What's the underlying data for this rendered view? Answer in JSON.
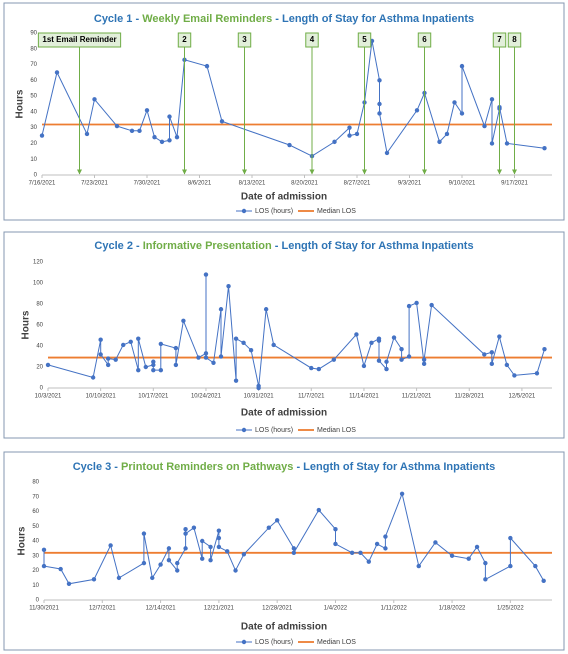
{
  "chart_data": [
    {
      "type": "line",
      "title_parts": [
        "Cycle 1 - ",
        "Weekly Email Reminders",
        " - Length of Stay for Asthma Inpatients"
      ],
      "x_label": "Date of admission",
      "y_label": "Hours",
      "xlim": [
        "7/16/2021",
        "9/22/2021"
      ],
      "xticks": [
        "7/16/2021",
        "7/23/2021",
        "7/30/2021",
        "8/6/2021",
        "8/13/2021",
        "8/20/2021",
        "8/27/2021",
        "9/3/2021",
        "9/10/2021",
        "9/17/2021"
      ],
      "ylim": [
        0,
        90
      ],
      "yticks": [
        0,
        10,
        20,
        30,
        40,
        50,
        60,
        70,
        80,
        90
      ],
      "x": [
        "7/16/2021",
        "7/18/2021",
        "7/22/2021",
        "7/23/2021",
        "7/26/2021",
        "7/28/2021",
        "7/29/2021",
        "7/30/2021",
        "7/31/2021",
        "8/1/2021",
        "8/2/2021",
        "8/2/2021",
        "8/3/2021",
        "8/4/2021",
        "8/7/2021",
        "8/9/2021",
        "8/18/2021",
        "8/21/2021",
        "8/24/2021",
        "8/26/2021",
        "8/26/2021",
        "8/27/2021",
        "8/28/2021",
        "8/29/2021",
        "8/30/2021",
        "8/30/2021",
        "8/30/2021",
        "8/31/2021",
        "9/4/2021",
        "9/5/2021",
        "9/7/2021",
        "9/8/2021",
        "9/9/2021",
        "9/10/2021",
        "9/10/2021",
        "9/13/2021",
        "9/14/2021",
        "9/14/2021",
        "9/15/2021",
        "9/15/2021",
        "9/16/2021",
        "9/21/2021"
      ],
      "series": [
        {
          "name": "LOS (hours)",
          "color": "#4472c4",
          "values": [
            25,
            65,
            26,
            48,
            31,
            28,
            28,
            41,
            24,
            21,
            22,
            37,
            24,
            73,
            69,
            34,
            19,
            12,
            21,
            30,
            25,
            26,
            46,
            85,
            60,
            45,
            39,
            14,
            41,
            52,
            21,
            26,
            46,
            39,
            69,
            31,
            48,
            20,
            42,
            43,
            20,
            17
          ]
        },
        {
          "name": "Median LOS",
          "color": "#ed7d31",
          "value": 32
        }
      ],
      "annotations": [
        {
          "label": "1st Email Reminder",
          "x": "7/21/2021"
        },
        {
          "label": "2",
          "x": "8/4/2021"
        },
        {
          "label": "3",
          "x": "8/12/2021"
        },
        {
          "label": "4",
          "x": "8/21/2021"
        },
        {
          "label": "5",
          "x": "8/28/2021"
        },
        {
          "label": "6",
          "x": "9/5/2021"
        },
        {
          "label": "7",
          "x": "9/15/2021"
        },
        {
          "label": "8",
          "x": "9/17/2021"
        }
      ]
    },
    {
      "type": "line",
      "title_parts": [
        "Cycle 2 - ",
        "Informative Presentation",
        " - Length of Stay for Asthma Inpatients"
      ],
      "x_label": "Date of admission",
      "y_label": "Hours",
      "xlim": [
        "10/3/2021",
        "12/9/2021"
      ],
      "xticks": [
        "10/3/2021",
        "10/10/2021",
        "10/17/2021",
        "10/24/2021",
        "10/31/2021",
        "11/7/2021",
        "11/14/2021",
        "11/21/2021",
        "11/28/2021",
        "12/5/2021"
      ],
      "ylim": [
        0,
        120
      ],
      "yticks": [
        0,
        20,
        40,
        60,
        80,
        100,
        120
      ],
      "x": [
        "10/3/2021",
        "10/9/2021",
        "10/10/2021",
        "10/10/2021",
        "10/11/2021",
        "10/11/2021",
        "10/12/2021",
        "10/13/2021",
        "10/14/2021",
        "10/15/2021",
        "10/15/2021",
        "10/16/2021",
        "10/17/2021",
        "10/17/2021",
        "10/17/2021",
        "10/18/2021",
        "10/18/2021",
        "10/20/2021",
        "10/20/2021",
        "10/21/2021",
        "10/23/2021",
        "10/24/2021",
        "10/24/2021",
        "10/24/2021",
        "10/25/2021",
        "10/26/2021",
        "10/26/2021",
        "10/27/2021",
        "10/28/2021",
        "10/28/2021",
        "10/29/2021",
        "10/30/2021",
        "10/31/2021",
        "10/31/2021",
        "11/1/2021",
        "11/2/2021",
        "11/7/2021",
        "11/8/2021",
        "11/10/2021",
        "11/13/2021",
        "11/14/2021",
        "11/15/2021",
        "11/16/2021",
        "11/16/2021",
        "11/16/2021",
        "11/17/2021",
        "11/17/2021",
        "11/18/2021",
        "11/19/2021",
        "11/19/2021",
        "11/20/2021",
        "11/20/2021",
        "11/21/2021",
        "11/22/2021",
        "11/22/2021",
        "11/23/2021",
        "11/30/2021",
        "12/1/2021",
        "12/1/2021",
        "12/2/2021",
        "12/3/2021",
        "12/4/2021",
        "12/7/2021",
        "12/8/2021"
      ],
      "series": [
        {
          "name": "LOS (hours)",
          "color": "#4472c4",
          "values": [
            22,
            10,
            46,
            32,
            22,
            28,
            27,
            41,
            44,
            17,
            47,
            20,
            22,
            25,
            17,
            17,
            42,
            38,
            22,
            64,
            29,
            33,
            108,
            29,
            24,
            75,
            30,
            97,
            7,
            47,
            43,
            36,
            2,
            0,
            75,
            41,
            19,
            18,
            27,
            51,
            21,
            43,
            47,
            45,
            26,
            18,
            25,
            48,
            37,
            27,
            30,
            78,
            81,
            23,
            27,
            79,
            32,
            34,
            23,
            49,
            22,
            12,
            14,
            37
          ]
        },
        {
          "name": "Median LOS",
          "color": "#ed7d31",
          "value": 29
        }
      ]
    },
    {
      "type": "line",
      "title_parts": [
        "Cycle 3 - ",
        "Printout Reminders on Pathways",
        " - Length of Stay for Asthma Inpatients"
      ],
      "x_label": "Date of admission",
      "y_label": "Hours",
      "xlim": [
        "11/30/2021",
        "1/30/2022"
      ],
      "xticks": [
        "11/30/2021",
        "12/7/2021",
        "12/14/2021",
        "12/21/2021",
        "12/28/2021",
        "1/4/2022",
        "1/11/2022",
        "1/18/2022",
        "1/25/2022"
      ],
      "ylim": [
        0,
        80
      ],
      "yticks": [
        0,
        10,
        20,
        30,
        40,
        50,
        60,
        70,
        80
      ],
      "x": [
        "11/30/2021",
        "11/30/2021",
        "12/2/2021",
        "12/3/2021",
        "12/6/2021",
        "12/8/2021",
        "12/9/2021",
        "12/12/2021",
        "12/12/2021",
        "12/13/2021",
        "12/14/2021",
        "12/15/2021",
        "12/15/2021",
        "12/16/2021",
        "12/16/2021",
        "12/17/2021",
        "12/17/2021",
        "12/17/2021",
        "12/18/2021",
        "12/19/2021",
        "12/19/2021",
        "12/20/2021",
        "12/20/2021",
        "12/21/2021",
        "12/21/2021",
        "12/21/2021",
        "12/22/2021",
        "12/23/2021",
        "12/24/2021",
        "12/27/2021",
        "12/28/2021",
        "12/30/2021",
        "12/30/2021",
        "1/2/2022",
        "1/4/2022",
        "1/4/2022",
        "1/6/2022",
        "1/7/2022",
        "1/8/2022",
        "1/9/2022",
        "1/10/2022",
        "1/10/2022",
        "1/12/2022",
        "1/14/2022",
        "1/16/2022",
        "1/18/2022",
        "1/20/2022",
        "1/21/2022",
        "1/22/2022",
        "1/22/2022",
        "1/25/2022",
        "1/25/2022",
        "1/28/2022",
        "1/29/2022"
      ],
      "series": [
        {
          "name": "LOS (hours)",
          "color": "#4472c4",
          "values": [
            34,
            23,
            21,
            11,
            14,
            37,
            15,
            25,
            45,
            15,
            24,
            35,
            27,
            20,
            25,
            35,
            48,
            45,
            49,
            28,
            40,
            36,
            27,
            47,
            42,
            36,
            33,
            20,
            31,
            49,
            54,
            35,
            32,
            61,
            48,
            38,
            32,
            32,
            26,
            38,
            35,
            43,
            72,
            23,
            39,
            30,
            28,
            36,
            25,
            14,
            23,
            42,
            23,
            13
          ]
        },
        {
          "name": "Median LOS",
          "color": "#ed7d31",
          "value": 32
        }
      ]
    }
  ]
}
